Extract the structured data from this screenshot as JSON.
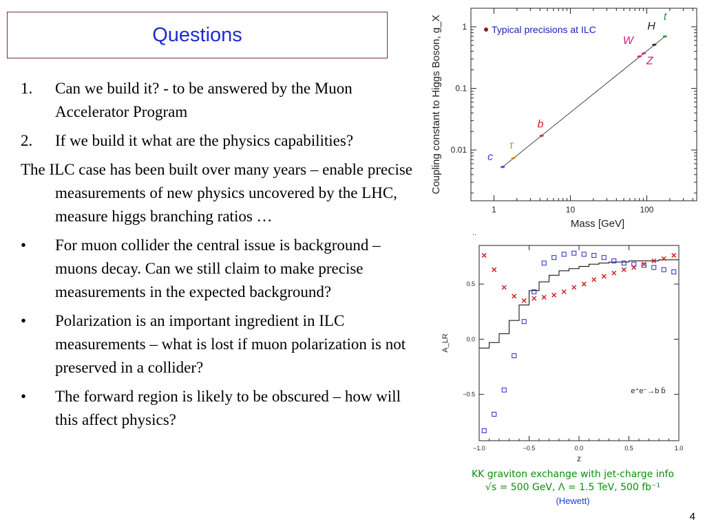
{
  "slide": {
    "title": "Questions",
    "page_number": "4",
    "items": [
      {
        "marker": "1.",
        "text": "Can we build it?  - to be answered by the Muon Accelerator Program"
      },
      {
        "marker": "2.",
        "text": "If we build it what are the physics capabilities?"
      },
      {
        "marker": "",
        "text": "The ILC case has been built over many years – enable precise measurements of new physics uncovered  by the LHC, measure higgs branching ratios …"
      },
      {
        "marker": "•",
        "text": "For muon collider the central issue is background – muons decay.  Can we still claim to make precise measurements in the expected background?"
      },
      {
        "marker": "•",
        "text": "Polarization is an important ingredient in ILC measurements – what is lost if muon polarization is not preserved in a collider?"
      },
      {
        "marker": "•",
        "text": "The forward region is likely to be obscured – how will this affect physics?"
      }
    ],
    "caption_line1": "KK graviton exchange with jet-charge info",
    "caption_line2": "√s = 500 GeV, Λ = 1.5 TeV, 500 fb⁻¹",
    "caption_credit": "(Hewett)",
    "stray_mark": ".."
  },
  "chart_data": [
    {
      "type": "scatter",
      "title": "",
      "xlabel": "Mass [GeV]",
      "ylabel": "Coupling constant to Higgs Boson, g_X",
      "x_scale": "log",
      "y_scale": "log",
      "xlim": [
        0.5,
        450
      ],
      "ylim": [
        0.0015,
        2
      ],
      "x_ticks": [
        "1",
        "10",
        "100"
      ],
      "y_ticks": [
        "1",
        "0.1",
        "0.01"
      ],
      "legend": "• Typical precisions at ILC",
      "legend_position": "top-left",
      "colors": {
        "legend": "#1c1fb0",
        "line": "#444444"
      },
      "points": [
        {
          "label": "c",
          "x": 1.3,
          "y": 0.0053,
          "color": "#3a3fd0"
        },
        {
          "label": "τ",
          "x": 1.8,
          "y": 0.0074,
          "color": "#e08a10"
        },
        {
          "label": "b",
          "x": 4.2,
          "y": 0.017,
          "color": "#d42020"
        },
        {
          "label": "W",
          "x": 80,
          "y": 0.33,
          "color": "#d4207a"
        },
        {
          "label": "Z",
          "x": 91,
          "y": 0.37,
          "color": "#d4207a"
        },
        {
          "label": "H",
          "x": 125,
          "y": 0.51,
          "color": "#222222"
        },
        {
          "label": "t",
          "x": 173,
          "y": 0.7,
          "color": "#1f9e3a"
        }
      ],
      "line": {
        "x": [
          1.3,
          173
        ],
        "y": [
          0.0053,
          0.7
        ]
      }
    },
    {
      "type": "scatter",
      "title": "",
      "xlabel": "z",
      "ylabel": "A_LR",
      "xlim": [
        -1.0,
        1.0
      ],
      "ylim": [
        -0.92,
        0.85
      ],
      "x_ticks": [
        "−1.0",
        "−0.5",
        "0.0",
        "0.5",
        "1.0"
      ],
      "y_ticks": [
        "0.5",
        "0.0",
        "−0.5"
      ],
      "annotation": "e⁺e⁻→b b̄",
      "series": [
        {
          "values": [
            [
              -0.95,
              -0.83
            ],
            [
              -0.85,
              -0.68
            ],
            [
              -0.75,
              -0.46
            ],
            [
              -0.65,
              -0.15
            ],
            [
              -0.55,
              0.16
            ],
            [
              -0.45,
              0.43
            ],
            [
              -0.35,
              0.69
            ],
            [
              -0.25,
              0.74
            ],
            [
              -0.15,
              0.77
            ],
            [
              -0.05,
              0.78
            ],
            [
              0.05,
              0.77
            ],
            [
              0.15,
              0.76
            ],
            [
              0.25,
              0.74
            ],
            [
              0.35,
              0.71
            ],
            [
              0.45,
              0.69
            ],
            [
              0.55,
              0.68
            ],
            [
              0.65,
              0.67
            ],
            [
              0.75,
              0.65
            ],
            [
              0.85,
              0.63
            ],
            [
              0.95,
              0.61
            ]
          ],
          "marker": "square",
          "color": "#2626c8"
        },
        {
          "values": [
            [
              -0.95,
              0.76
            ],
            [
              -0.85,
              0.63
            ],
            [
              -0.75,
              0.47
            ],
            [
              -0.65,
              0.39
            ],
            [
              -0.55,
              0.35
            ],
            [
              -0.45,
              0.37
            ],
            [
              -0.35,
              0.38
            ],
            [
              -0.25,
              0.4
            ],
            [
              -0.15,
              0.43
            ],
            [
              -0.05,
              0.47
            ],
            [
              0.05,
              0.5
            ],
            [
              0.15,
              0.54
            ],
            [
              0.25,
              0.57
            ],
            [
              0.35,
              0.6
            ],
            [
              0.45,
              0.63
            ],
            [
              0.55,
              0.65
            ],
            [
              0.65,
              0.68
            ],
            [
              0.75,
              0.71
            ],
            [
              0.85,
              0.73
            ],
            [
              0.95,
              0.76
            ]
          ],
          "marker": "x",
          "color": "#d42020"
        },
        {
          "type": "step",
          "values": [
            [
              -1.0,
              -0.08
            ],
            [
              -0.9,
              -0.03
            ],
            [
              -0.8,
              0.05
            ],
            [
              -0.7,
              0.17
            ],
            [
              -0.6,
              0.31
            ],
            [
              -0.5,
              0.44
            ],
            [
              -0.4,
              0.52
            ],
            [
              -0.3,
              0.58
            ],
            [
              -0.2,
              0.62
            ],
            [
              -0.1,
              0.64
            ],
            [
              0.0,
              0.66
            ],
            [
              0.1,
              0.68
            ],
            [
              0.2,
              0.69
            ],
            [
              0.3,
              0.7
            ],
            [
              0.4,
              0.7
            ],
            [
              0.5,
              0.71
            ],
            [
              0.6,
              0.71
            ],
            [
              0.7,
              0.71
            ],
            [
              0.8,
              0.72
            ],
            [
              0.9,
              0.72
            ]
          ],
          "color": "#000000"
        }
      ]
    }
  ]
}
